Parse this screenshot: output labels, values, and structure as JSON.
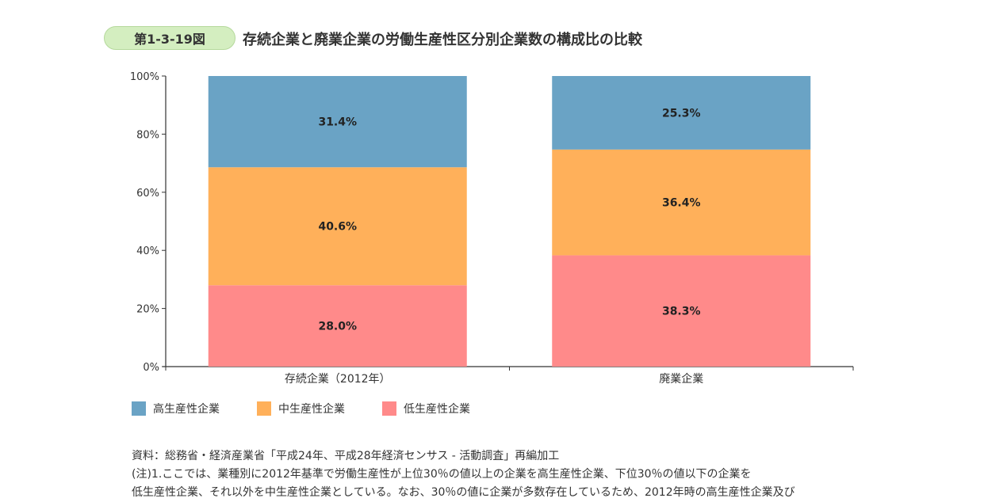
{
  "header": {
    "figure_label": "第1-3-19図",
    "title": "存続企業と廃業企業の労働生産性区分別企業数の構成比の比較"
  },
  "chart_data": {
    "type": "bar",
    "stacked": true,
    "categories": [
      "存続企業（2012年）",
      "廃業企業"
    ],
    "series": [
      {
        "name": "低生産性企業",
        "values": [
          28.0,
          38.3
        ],
        "labels": [
          "28.0%",
          "38.3%"
        ],
        "color": "#ff8a8a"
      },
      {
        "name": "中生産性企業",
        "values": [
          40.6,
          36.4
        ],
        "labels": [
          "40.6%",
          "36.4%"
        ],
        "color": "#ffb05a"
      },
      {
        "name": "高生産性企業",
        "values": [
          31.4,
          25.3
        ],
        "labels": [
          "31.4%",
          "25.3%"
        ],
        "color": "#6aa3c5"
      }
    ],
    "ylim": [
      0,
      100
    ],
    "yticks": [
      0,
      20,
      40,
      60,
      80,
      100
    ],
    "ytick_labels": [
      "0%",
      "20%",
      "40%",
      "60%",
      "80%",
      "100%"
    ],
    "legend": [
      {
        "name": "高生産性企業",
        "color": "#6aa3c5"
      },
      {
        "name": "中生産性企業",
        "color": "#ffb05a"
      },
      {
        "name": "低生産性企業",
        "color": "#ff8a8a"
      }
    ],
    "legend_position": "bottom-left",
    "grid": false
  },
  "notes": {
    "source": "資料：総務省・経済産業省「平成24年、平成28年経済センサス - 活動調査」再編加工",
    "note1": "(注)1.ここでは、業種別に2012年基準で労働生産性が上位30％の値以上の企業を高生産性企業、下位30％の値以下の企業を",
    "note2": "低生産性企業、それ以外を中生産性企業としている。なお、30％の値に企業が多数存在しているため、2012年時の高生産性企業及び"
  }
}
